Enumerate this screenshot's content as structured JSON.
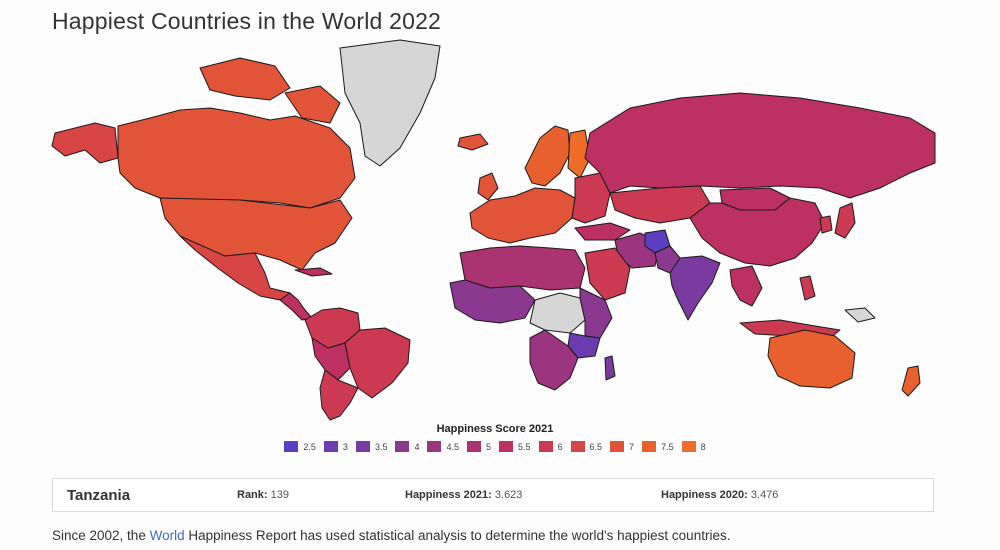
{
  "title": "Happiest Countries in the World 2022",
  "legend": {
    "title": "Happiness Score 2021",
    "items": [
      {
        "label": "2.5",
        "color": "#5a3fc0"
      },
      {
        "label": "3",
        "color": "#6a3cb0"
      },
      {
        "label": "3.5",
        "color": "#7b3aa0"
      },
      {
        "label": "4",
        "color": "#8b3890"
      },
      {
        "label": "4.5",
        "color": "#9c3580"
      },
      {
        "label": "5",
        "color": "#ac3372"
      },
      {
        "label": "5.5",
        "color": "#bc3062"
      },
      {
        "label": "6",
        "color": "#cc3a52"
      },
      {
        "label": "6.5",
        "color": "#d84545"
      },
      {
        "label": "7",
        "color": "#e25438"
      },
      {
        "label": "7.5",
        "color": "#e8602e"
      },
      {
        "label": "8",
        "color": "#ee6d28"
      }
    ]
  },
  "selected": {
    "country": "Tanzania",
    "rank_label": "Rank:",
    "rank_value": "139",
    "h2021_label": "Happiness 2021:",
    "h2021_value": "3.623",
    "h2020_label": "Happiness 2020:",
    "h2020_value": "3.476"
  },
  "footer": {
    "before": "Since 2002, the ",
    "link": "World",
    "after": " Happiness Report has used statistical analysis to determine the world's happiest countries."
  },
  "colors": {
    "no_data": "#d6d6d6",
    "border": "#1a1a1a"
  }
}
